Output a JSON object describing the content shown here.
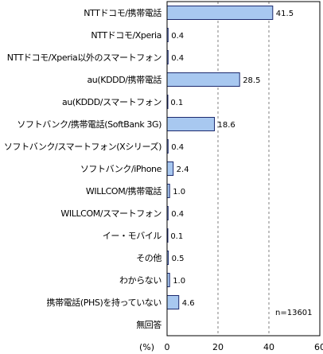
{
  "chart_data": {
    "type": "bar",
    "orientation": "horizontal",
    "categories": [
      "NTTドコモ/携帯電話",
      "NTTドコモ/Xperia",
      "NTTドコモ/Xperia以外のスマートフォン",
      "au(KDDD/携帯電話",
      "au(KDDD/スマートフォン",
      "ソフトバンク/携帯電話(SoftBank 3G)",
      "ソフトバンク/スマートフォン(Xシリーズ)",
      "ソフトバンク/iPhone",
      "WILLCOM/携帯電話",
      "WILLCOM/スマートフォン",
      "イー・モバイル",
      "その他",
      "わからない",
      "携帯電話(PHS)を持っていない",
      "無回答"
    ],
    "values": [
      41.5,
      0.4,
      0.4,
      28.5,
      0.1,
      18.6,
      0.4,
      2.4,
      1.0,
      0.4,
      0.1,
      0.5,
      1.0,
      4.6,
      null
    ],
    "value_labels": [
      "41.5",
      "0.4",
      "0.4",
      "28.5",
      "0.1",
      "18.6",
      "0.4",
      "2.4",
      "1.0",
      "0.4",
      "0.1",
      "0.5",
      "1.0",
      "4.6",
      ""
    ],
    "xlabel": "(%)",
    "xlim": [
      0,
      60
    ],
    "xticks": [
      "0",
      "20",
      "40",
      "60"
    ],
    "annotation": "n=13601",
    "grid": "vertical dashed at 20 and 40",
    "colors": {
      "bar_fill": "#a8c8f0",
      "bar_stroke": "#1c2a6e",
      "grid": "#808080",
      "axis": "#000000"
    }
  }
}
